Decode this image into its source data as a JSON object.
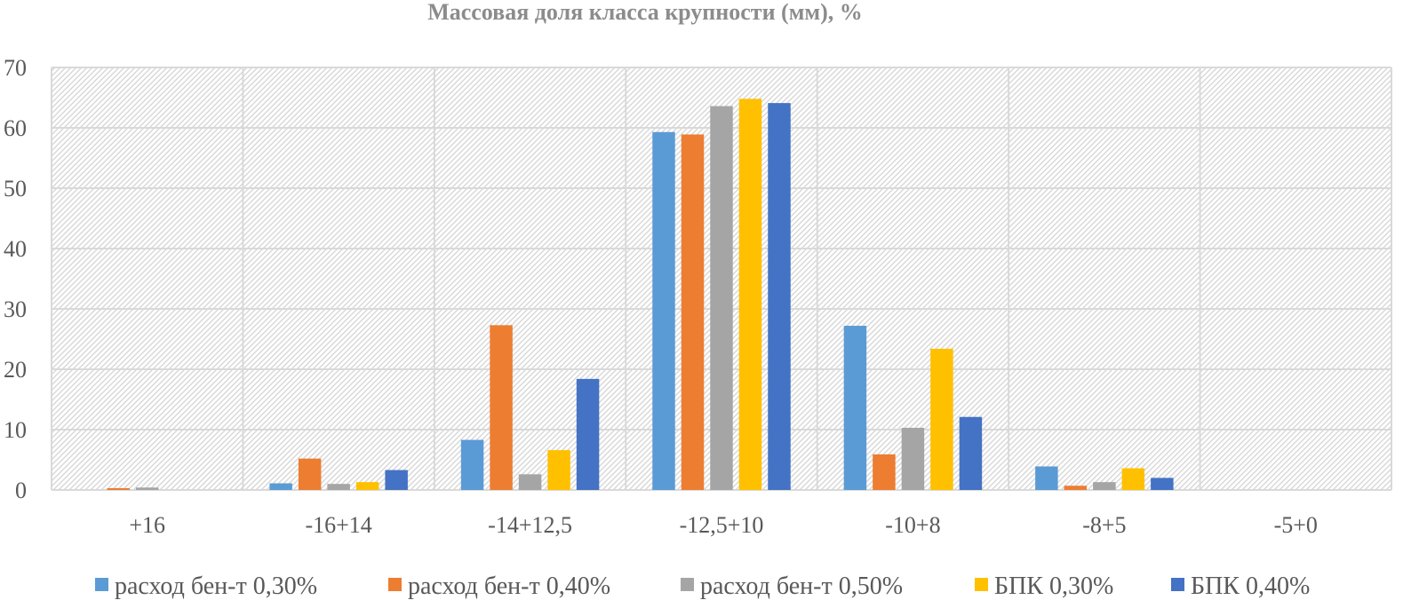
{
  "chart_data": {
    "type": "bar",
    "title": "Массовая доля класса крупности (мм), %",
    "xlabel": "",
    "ylabel": "",
    "ylim": [
      0,
      70
    ],
    "yticks": [
      "0",
      "10",
      "20",
      "30",
      "40",
      "50",
      "60",
      "70"
    ],
    "grid": true,
    "background": "diagonal hatch",
    "legend_position": "bottom",
    "categories": [
      "+16",
      "-16+14",
      "-14+12,5",
      "-12,5+10",
      "-10+8",
      "-8+5",
      "-5+0"
    ],
    "series": [
      {
        "name": "расход бен-т 0,30%",
        "color": "#5b9bd5",
        "values": [
          0,
          1.1,
          8.3,
          59.3,
          27.2,
          3.9,
          0
        ]
      },
      {
        "name": "расход бен-т 0,40%",
        "color": "#ed7d31",
        "values": [
          0.3,
          5.2,
          27.3,
          58.9,
          5.9,
          0.7,
          0
        ]
      },
      {
        "name": "расход бен-т 0,50%",
        "color": "#a5a5a5",
        "values": [
          0.4,
          1.0,
          2.6,
          63.6,
          10.3,
          1.3,
          0
        ]
      },
      {
        "name": "БПК 0,30%",
        "color": "#ffc000",
        "values": [
          0,
          1.3,
          6.6,
          64.8,
          23.4,
          3.6,
          0
        ]
      },
      {
        "name": "БПК 0,40%",
        "color": "#4472c4",
        "values": [
          0,
          3.3,
          18.4,
          64.1,
          12.1,
          2.0,
          0
        ]
      }
    ]
  }
}
